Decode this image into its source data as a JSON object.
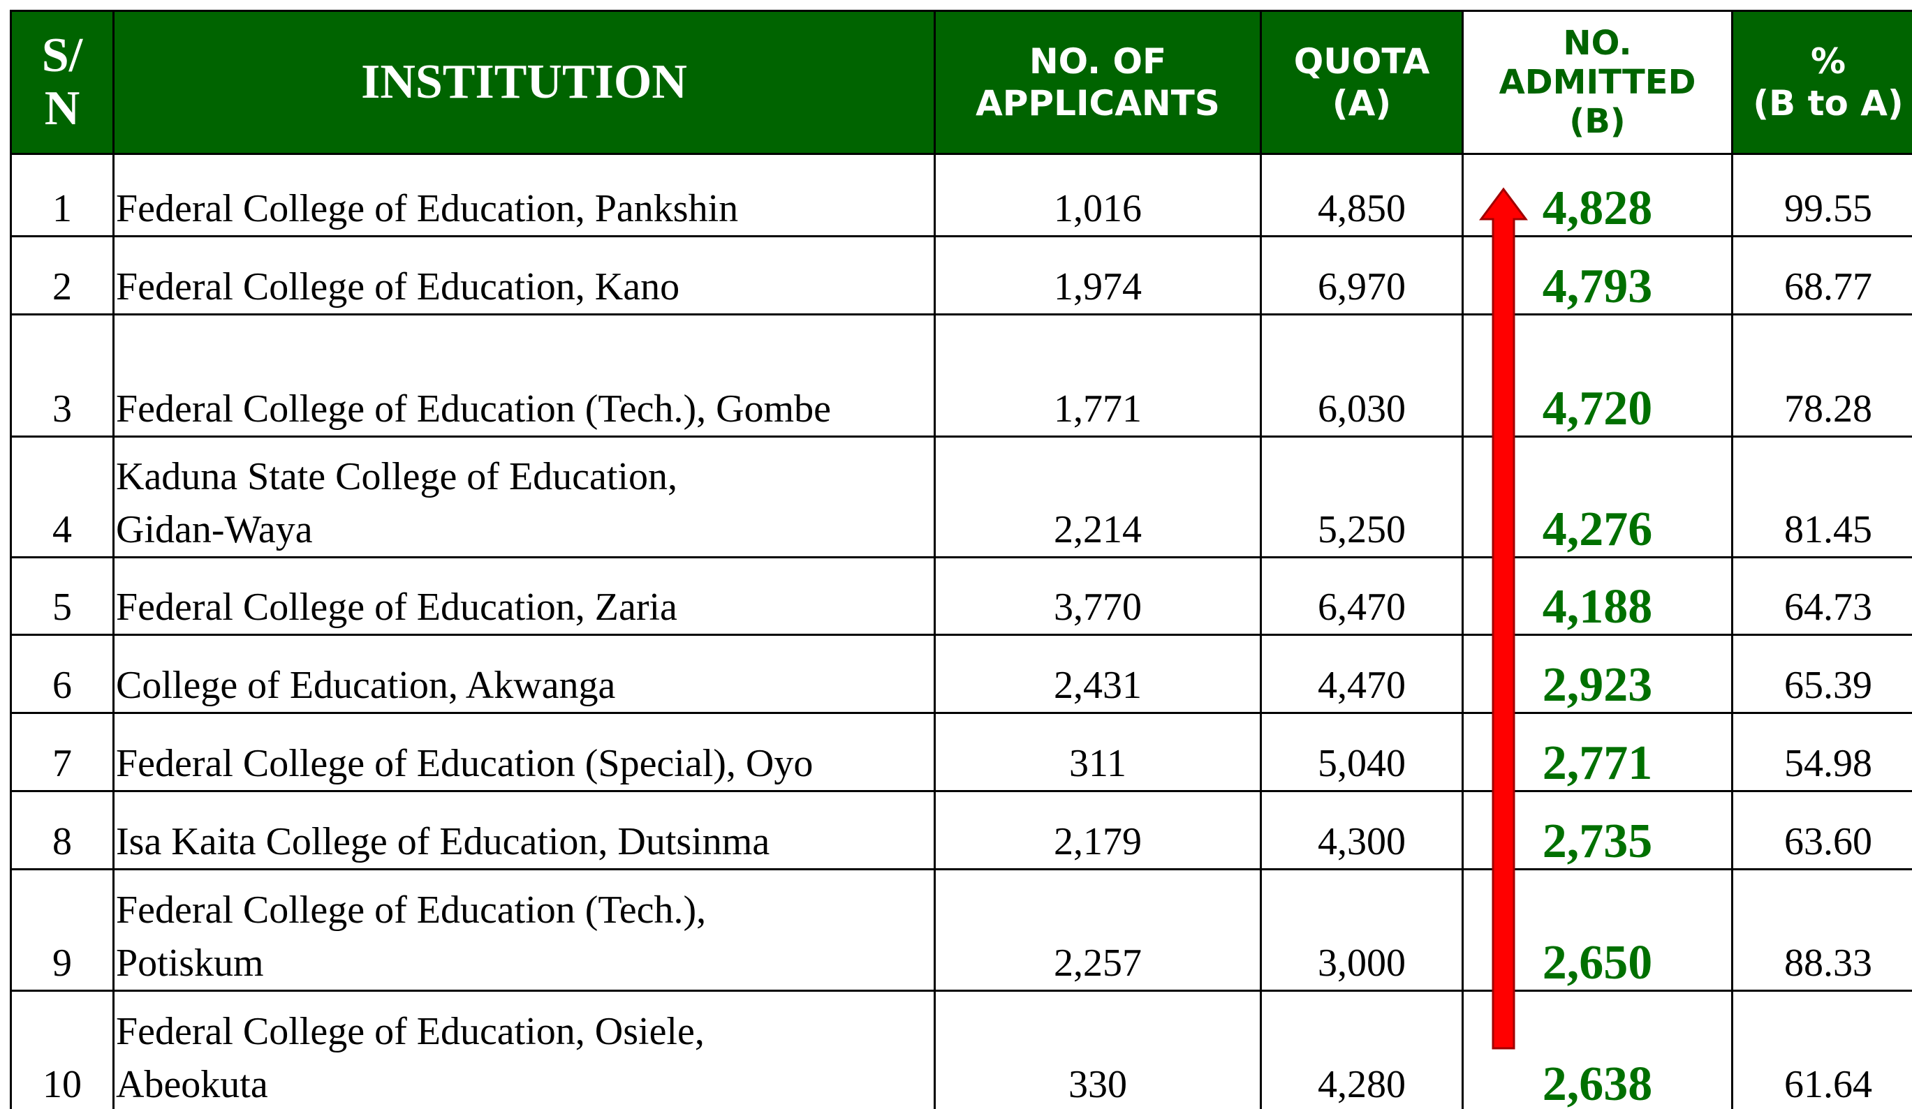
{
  "header": [
    [
      "S/",
      "N"
    ],
    [
      "INSTITUTION"
    ],
    [
      "NO. OF",
      "APPLICANTS"
    ],
    [
      "QUOTA",
      "(A)"
    ],
    [
      "NO.",
      "ADMITTED",
      "(B)"
    ],
    [
      "%",
      "(B to A)"
    ]
  ],
  "rows": [
    [
      "1",
      [
        "Federal College of Education, Pankshin"
      ],
      "1,016",
      "4,850",
      "4,828",
      "99.55"
    ],
    [
      "2",
      [
        "Federal College of Education, Kano"
      ],
      "1,974",
      "6,970",
      "4,793",
      "68.77"
    ],
    [
      "3",
      [
        "Federal College of Education (Tech.), Gombe"
      ],
      "1,771",
      "6,030",
      "4,720",
      "78.28"
    ],
    [
      "4",
      [
        "Kaduna State College of Education,",
        "Gidan-Waya"
      ],
      "2,214",
      "5,250",
      "4,276",
      "81.45"
    ],
    [
      "5",
      [
        "Federal College of Education, Zaria"
      ],
      "3,770",
      "6,470",
      "4,188",
      "64.73"
    ],
    [
      "6",
      [
        "College of Education, Akwanga"
      ],
      "2,431",
      "4,470",
      "2,923",
      "65.39"
    ],
    [
      "7",
      [
        "Federal College of Education (Special), Oyo"
      ],
      "311",
      "5,040",
      "2,771",
      "54.98"
    ],
    [
      "8",
      [
        "Isa Kaita College of Education, Dutsinma"
      ],
      "2,179",
      "4,300",
      "2,735",
      "63.60"
    ],
    [
      "9",
      [
        "Federal College of Education (Tech.),",
        "Potiskum"
      ],
      "2,257",
      "3,000",
      "2,650",
      "88.33"
    ],
    [
      "10",
      [
        "Federal College of Education, Osiele,",
        "Abeokuta"
      ],
      "330",
      "4,280",
      "2,638",
      "61.64"
    ]
  ]
}
